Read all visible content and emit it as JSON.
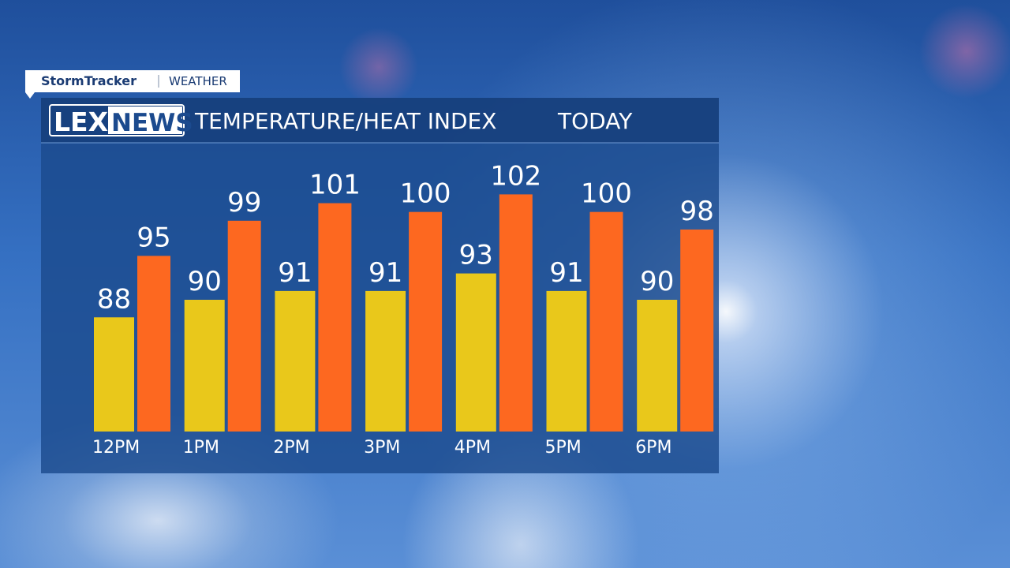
{
  "brand": {
    "stormtracker": "StormTracker",
    "weather": "WEATHER",
    "lex": "LEX",
    "news": "NEWS"
  },
  "chart_data": {
    "type": "bar",
    "title": "TEMPERATURE/HEAT INDEX",
    "subtitle": "TODAY",
    "categories": [
      "12PM",
      "1PM",
      "2PM",
      "3PM",
      "4PM",
      "5PM",
      "6PM"
    ],
    "series": [
      {
        "color": "#e9c81b",
        "values": [
          88,
          90,
          91,
          91,
          93,
          91,
          90
        ]
      },
      {
        "color": "#fd6820",
        "values": [
          95,
          99,
          101,
          100,
          102,
          100,
          98
        ]
      }
    ],
    "ylim": [
      75,
      105
    ]
  }
}
